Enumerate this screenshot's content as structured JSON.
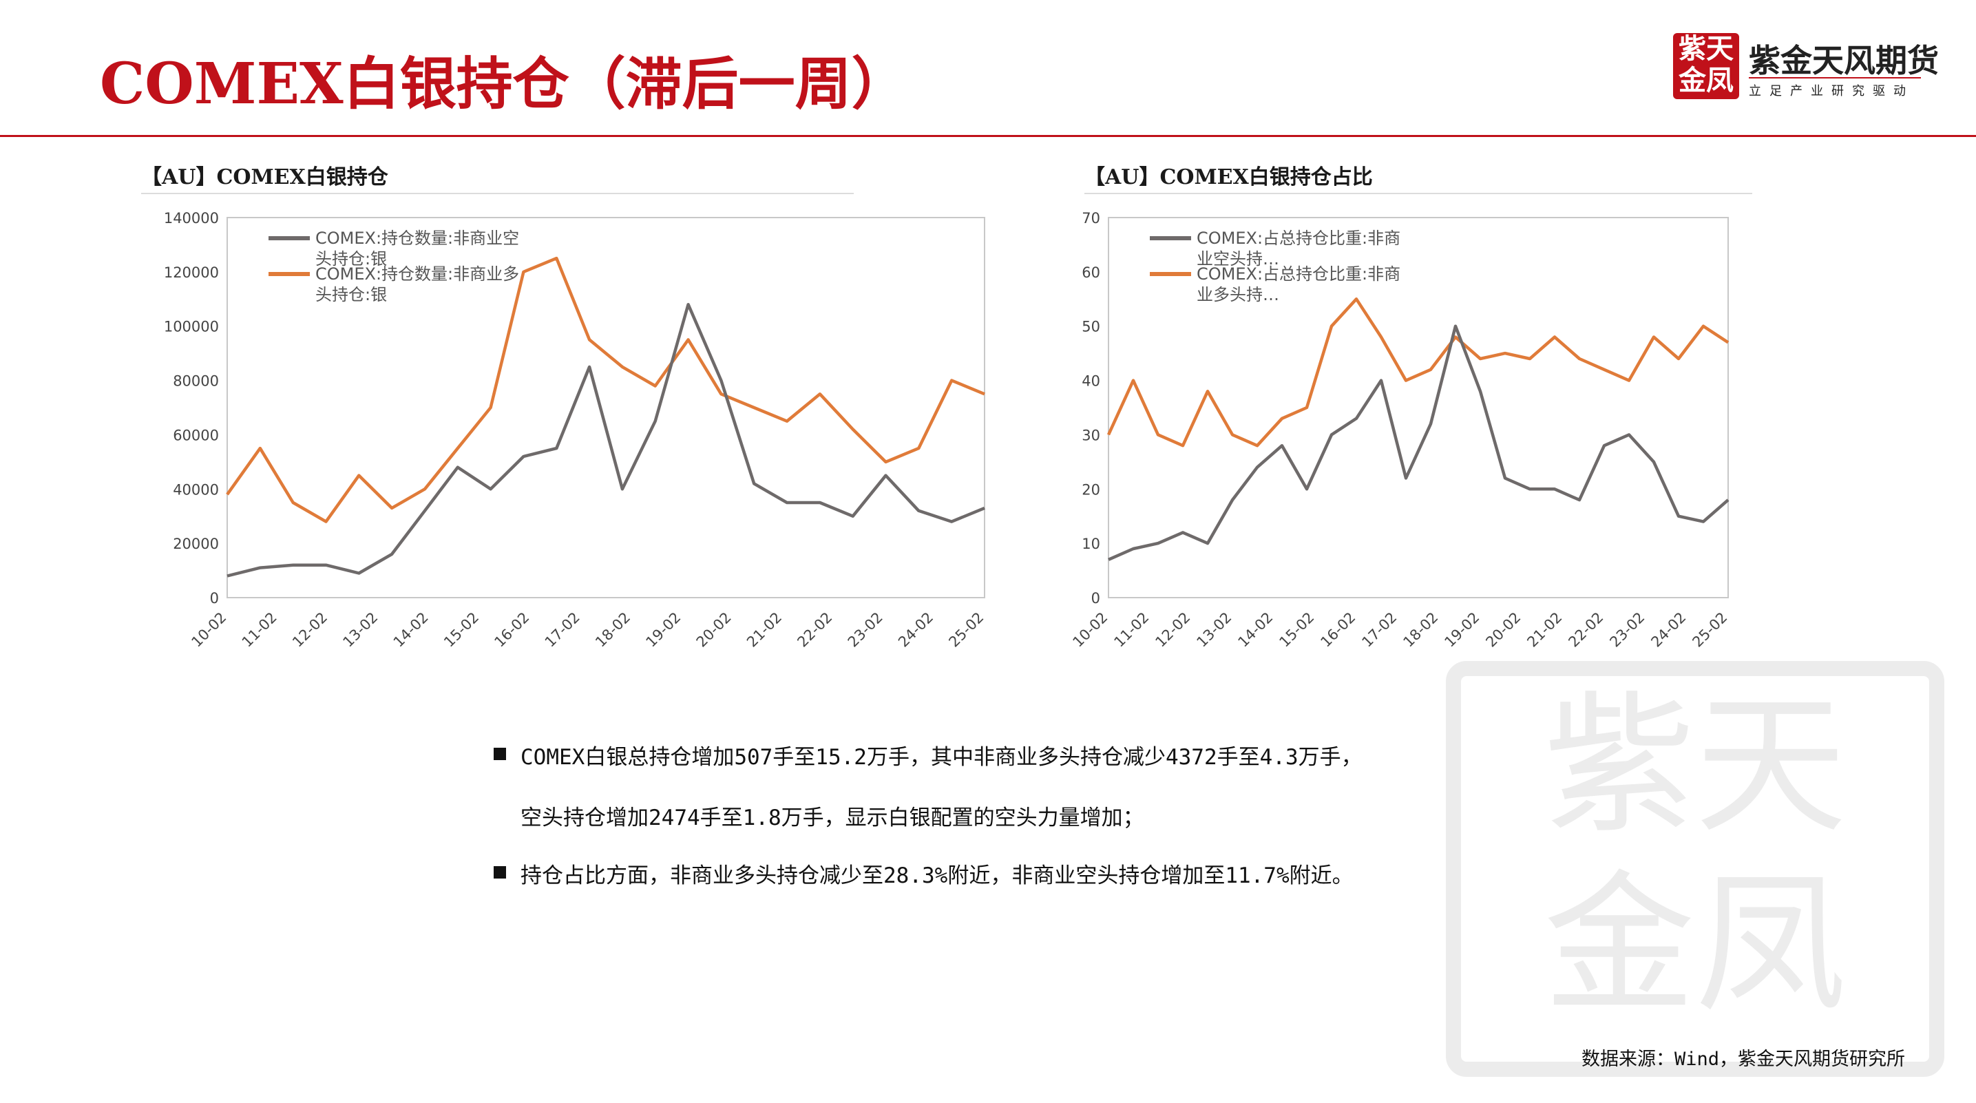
{
  "header": {
    "title": "COMEX白银持仓（滞后一周）",
    "logo_mark": "紫天金凤",
    "logo_name": "紫金天风期货",
    "logo_slogan": "立足产业研究驱动",
    "accent_color": "#c0111a"
  },
  "charts": [
    {
      "id": "left",
      "title": "【AU】COMEX白银持仓"
    },
    {
      "id": "right",
      "title": "【AU】COMEX白银持仓占比"
    }
  ],
  "chart_data": [
    {
      "type": "line",
      "title": "【AU】COMEX白银持仓",
      "x_ticks": [
        "10-02",
        "11-02",
        "12-02",
        "13-02",
        "14-02",
        "15-02",
        "16-02",
        "17-02",
        "18-02",
        "19-02",
        "20-02",
        "21-02",
        "22-02",
        "23-02",
        "24-02",
        "25-02"
      ],
      "ylim": [
        0,
        140000
      ],
      "y_ticks": [
        "0",
        "20000",
        "40000",
        "60000",
        "80000",
        "100000",
        "120000",
        "140000"
      ],
      "legend_position": "top-left",
      "grid": false,
      "series": [
        {
          "name": "COMEX:持仓数量:非商业空头持仓:银",
          "color": "#6e6a6a",
          "values": [
            8000,
            11000,
            12000,
            12000,
            9000,
            16000,
            32000,
            48000,
            40000,
            52000,
            55000,
            85000,
            40000,
            65000,
            108000,
            80000,
            42000,
            35000,
            35000,
            30000,
            45000,
            32000,
            28000,
            33000
          ]
        },
        {
          "name": "COMEX:持仓数量:非商业多头持仓:银",
          "color": "#e07b39",
          "values": [
            38000,
            55000,
            35000,
            28000,
            45000,
            33000,
            40000,
            55000,
            70000,
            120000,
            125000,
            95000,
            85000,
            78000,
            95000,
            75000,
            70000,
            65000,
            75000,
            62000,
            50000,
            55000,
            80000,
            75000
          ]
        }
      ]
    },
    {
      "type": "line",
      "title": "【AU】COMEX白银持仓占比",
      "x_ticks": [
        "10-02",
        "11-02",
        "12-02",
        "13-02",
        "14-02",
        "15-02",
        "16-02",
        "17-02",
        "18-02",
        "19-02",
        "20-02",
        "21-02",
        "22-02",
        "23-02",
        "24-02",
        "25-02"
      ],
      "ylim": [
        0,
        70
      ],
      "y_ticks": [
        "0",
        "10",
        "20",
        "30",
        "40",
        "50",
        "60",
        "70"
      ],
      "legend_position": "top-left",
      "grid": false,
      "series": [
        {
          "name": "COMEX:占总持仓比重:非商业空头持…",
          "color": "#6e6a6a",
          "values": [
            7,
            9,
            10,
            12,
            10,
            18,
            24,
            28,
            20,
            30,
            33,
            40,
            22,
            32,
            50,
            38,
            22,
            20,
            20,
            18,
            28,
            30,
            25,
            15,
            14,
            18
          ]
        },
        {
          "name": "COMEX:占总持仓比重:非商业多头持…",
          "color": "#e07b39",
          "values": [
            30,
            40,
            30,
            28,
            38,
            30,
            28,
            33,
            35,
            50,
            55,
            48,
            40,
            42,
            48,
            44,
            45,
            44,
            48,
            44,
            42,
            40,
            48,
            44,
            50,
            47
          ]
        }
      ]
    }
  ],
  "bullets": [
    "COMEX白银总持仓增加507手至15.2万手，其中非商业多头持仓减少4372手至4.3万手，",
    "空头持仓增加2474手至1.8万手，显示白银配置的空头力量增加；",
    "持仓占比方面，非商业多头持仓减少至28.3%附近，非商业空头持仓增加至11.7%附近。"
  ],
  "source": "数据来源：Wind，紫金天风期货研究所"
}
